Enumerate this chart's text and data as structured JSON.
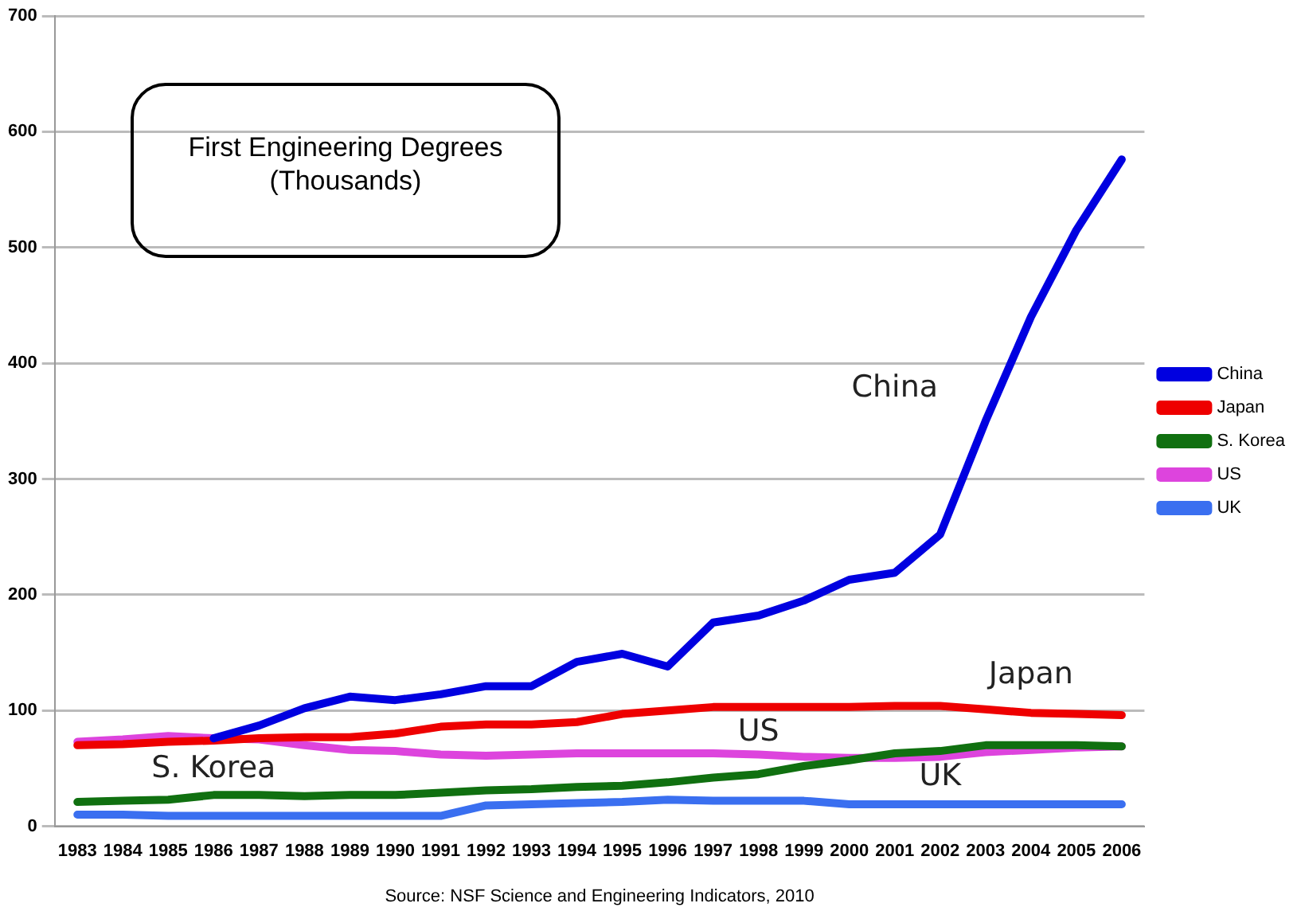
{
  "chart_data": {
    "type": "line",
    "title": "First Engineering Degrees\n(Thousands)",
    "categories": [
      "1983",
      "1984",
      "1985",
      "1986",
      "1987",
      "1988",
      "1989",
      "1990",
      "1991",
      "1992",
      "1993",
      "1994",
      "1995",
      "1996",
      "1997",
      "1998",
      "1999",
      "2000",
      "2001",
      "2002",
      "2003",
      "2004",
      "2005",
      "2006"
    ],
    "series": [
      {
        "name": "China",
        "color": "#0000e0",
        "values": [
          null,
          null,
          null,
          76,
          87,
          102,
          112,
          109,
          114,
          121,
          121,
          142,
          149,
          138,
          176,
          182,
          195,
          213,
          219,
          252,
          350,
          440,
          515,
          576
        ]
      },
      {
        "name": "Japan",
        "color": "#ee0000",
        "values": [
          70,
          71,
          73,
          74,
          76,
          77,
          77,
          80,
          86,
          88,
          88,
          90,
          97,
          100,
          103,
          103,
          103,
          103,
          104,
          104,
          101,
          98,
          97,
          96
        ]
      },
      {
        "name": "S. Korea",
        "color": "#107010",
        "values": [
          21,
          22,
          23,
          27,
          27,
          26,
          27,
          27,
          29,
          31,
          32,
          34,
          35,
          38,
          42,
          45,
          52,
          57,
          63,
          65,
          70,
          70,
          70,
          69
        ]
      },
      {
        "name": "US",
        "color": "#dd44dd",
        "values": [
          73,
          75,
          78,
          76,
          75,
          70,
          66,
          65,
          62,
          61,
          62,
          63,
          63,
          63,
          63,
          62,
          60,
          59,
          59,
          60,
          64,
          66,
          68,
          69
        ]
      },
      {
        "name": "UK",
        "color": "#3a6ff0",
        "values": [
          10,
          10,
          9,
          9,
          9,
          9,
          9,
          9,
          9,
          18,
          19,
          20,
          21,
          23,
          22,
          22,
          22,
          19,
          19,
          19,
          19,
          19,
          19,
          19
        ]
      }
    ],
    "ylim": [
      0,
      700
    ],
    "yticks": [
      0,
      100,
      200,
      300,
      400,
      500,
      600,
      700
    ],
    "grid": "y",
    "legend": "right",
    "marker": "none",
    "line_style": "solid",
    "annotations": [
      "Source: NSF Science and Engineering Indicators, 2010"
    ]
  }
}
